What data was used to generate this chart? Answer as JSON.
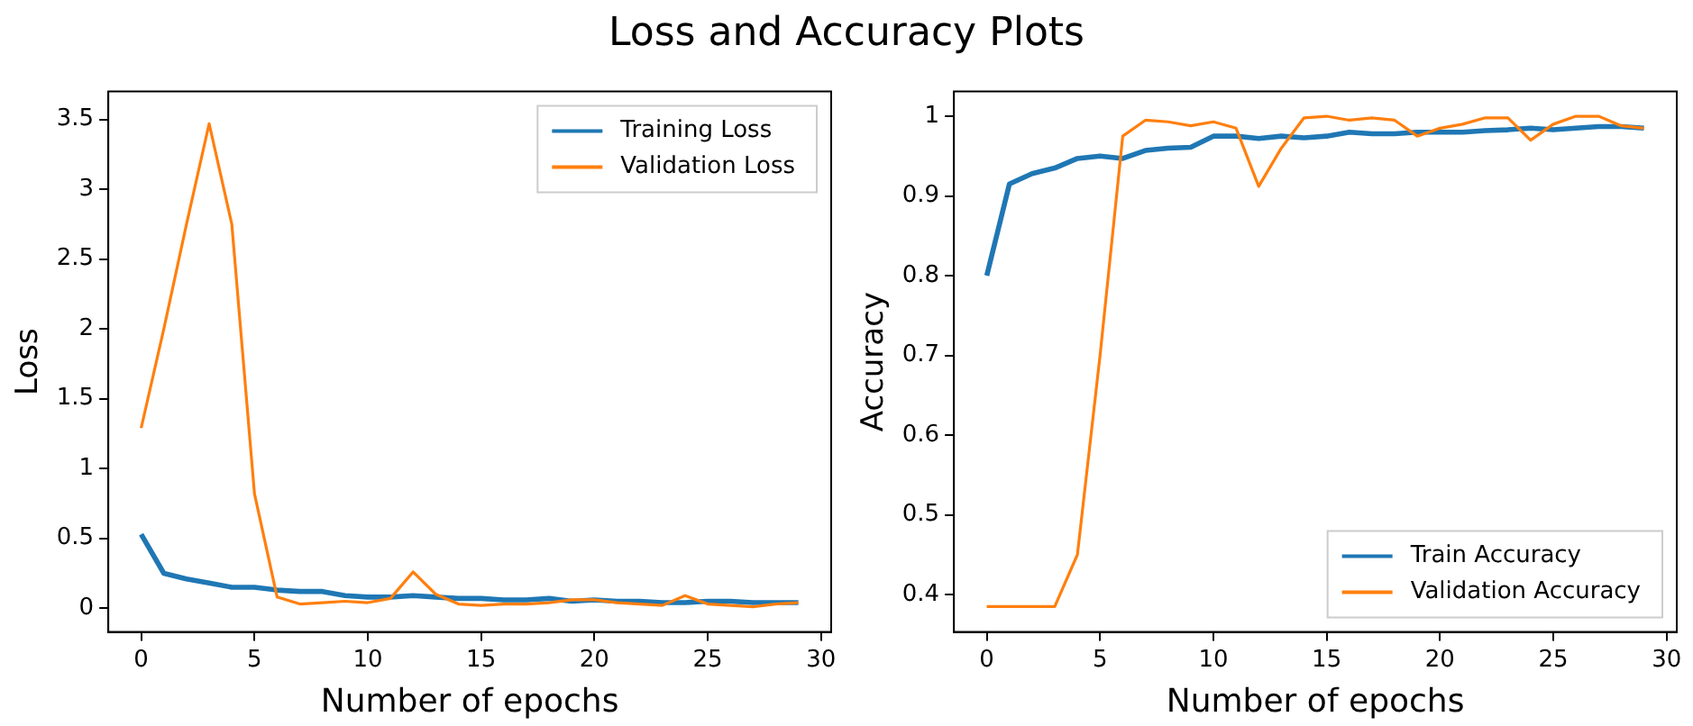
{
  "chart_data": [
    {
      "type": "line",
      "title": "Loss and Accuracy Plots",
      "xlabel": "Number of epochs",
      "ylabel": "Loss",
      "x": [
        0,
        1,
        2,
        3,
        4,
        5,
        6,
        7,
        8,
        9,
        10,
        11,
        12,
        13,
        14,
        15,
        16,
        17,
        18,
        19,
        20,
        21,
        22,
        23,
        24,
        25,
        26,
        27,
        28,
        29
      ],
      "xlim": [
        -1.45,
        30.45
      ],
      "xticks": [
        0,
        5,
        10,
        15,
        20,
        25,
        30
      ],
      "ylim": [
        -0.17,
        3.7
      ],
      "yticks": [
        0,
        0.5,
        1,
        1.5,
        2,
        2.5,
        3,
        3.5
      ],
      "grid": false,
      "legend": "top right",
      "series": [
        {
          "name": "Training Loss",
          "color": "#1f77b4",
          "values": [
            0.53,
            0.25,
            0.21,
            0.18,
            0.15,
            0.15,
            0.13,
            0.12,
            0.12,
            0.09,
            0.08,
            0.08,
            0.09,
            0.08,
            0.07,
            0.07,
            0.06,
            0.06,
            0.07,
            0.05,
            0.06,
            0.05,
            0.05,
            0.04,
            0.04,
            0.05,
            0.05,
            0.04,
            0.04,
            0.04
          ]
        },
        {
          "name": "Validation Loss",
          "color": "#ff7f0e",
          "values": [
            1.29,
            2.0,
            2.75,
            3.47,
            2.75,
            0.82,
            0.08,
            0.03,
            0.04,
            0.05,
            0.04,
            0.07,
            0.26,
            0.1,
            0.03,
            0.02,
            0.03,
            0.03,
            0.04,
            0.06,
            0.06,
            0.04,
            0.03,
            0.02,
            0.09,
            0.03,
            0.02,
            0.01,
            0.03,
            0.04
          ]
        }
      ]
    },
    {
      "type": "line",
      "xlabel": "Number of epochs",
      "ylabel": "Accuracy",
      "x": [
        0,
        1,
        2,
        3,
        4,
        5,
        6,
        7,
        8,
        9,
        10,
        11,
        12,
        13,
        14,
        15,
        16,
        17,
        18,
        19,
        20,
        21,
        22,
        23,
        24,
        25,
        26,
        27,
        28,
        29
      ],
      "xlim": [
        -1.45,
        30.45
      ],
      "xticks": [
        0,
        5,
        10,
        15,
        20,
        25,
        30
      ],
      "ylim": [
        0.353,
        1.031
      ],
      "yticks": [
        0.4,
        0.5,
        0.6,
        0.7,
        0.8,
        0.9,
        1.0
      ],
      "grid": false,
      "legend": "bottom right",
      "series": [
        {
          "name": "Train Accuracy",
          "color": "#1f77b4",
          "values": [
            0.8,
            0.915,
            0.928,
            0.935,
            0.947,
            0.95,
            0.947,
            0.957,
            0.96,
            0.961,
            0.975,
            0.975,
            0.972,
            0.975,
            0.973,
            0.975,
            0.98,
            0.978,
            0.978,
            0.98,
            0.98,
            0.98,
            0.982,
            0.983,
            0.985,
            0.983,
            0.985,
            0.987,
            0.987,
            0.985
          ]
        },
        {
          "name": "Validation Accuracy",
          "color": "#ff7f0e",
          "values": [
            0.385,
            0.385,
            0.385,
            0.385,
            0.45,
            0.7,
            0.975,
            0.995,
            0.993,
            0.988,
            0.993,
            0.985,
            0.912,
            0.96,
            0.998,
            1.0,
            0.995,
            0.998,
            0.995,
            0.975,
            0.985,
            0.99,
            0.998,
            0.998,
            0.97,
            0.99,
            1.0,
            1.0,
            0.988,
            0.985
          ]
        }
      ]
    }
  ]
}
